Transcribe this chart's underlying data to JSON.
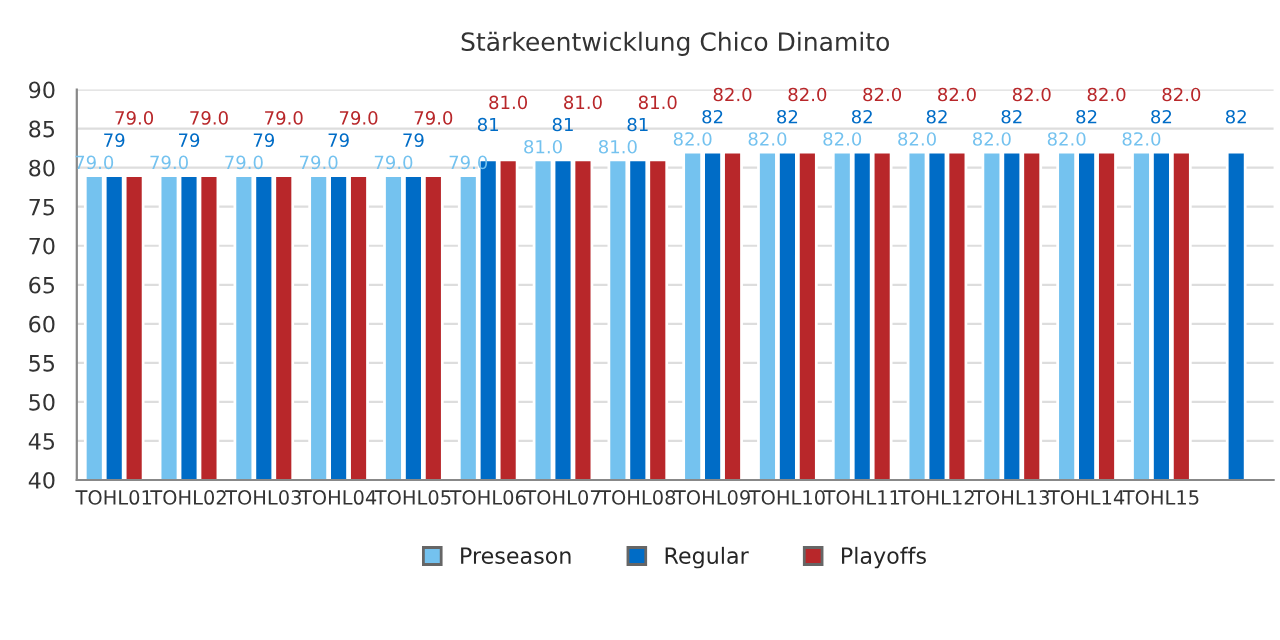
{
  "chart_data": {
    "type": "bar",
    "title": "Stärkeentwicklung Chico Dinamito",
    "categories": [
      "TOHL01",
      "TOHL02",
      "TOHL03",
      "TOHL04",
      "TOHL05",
      "TOHL06",
      "TOHL07",
      "TOHL08",
      "TOHL09",
      "TOHL10",
      "TOHL11",
      "TOHL12",
      "TOHL13",
      "TOHL14",
      "TOHL15",
      null
    ],
    "series": [
      {
        "name": "Preseason",
        "color": "#74c2ef",
        "values": [
          79,
          79,
          79,
          79,
          79,
          79,
          81,
          81,
          82,
          82,
          82,
          82,
          82,
          82,
          82,
          null
        ],
        "value_labels": [
          "79.0",
          "79.0",
          "79.0",
          "79.0",
          "79.0",
          "79.0",
          "81.0",
          "81.0",
          "82.0",
          "82.0",
          "82.0",
          "82.0",
          "82.0",
          "82.0",
          "82.0",
          null
        ]
      },
      {
        "name": "Regular",
        "color": "#006cc6",
        "values": [
          79,
          79,
          79,
          79,
          79,
          81,
          81,
          81,
          82,
          82,
          82,
          82,
          82,
          82,
          82,
          82
        ],
        "value_labels": [
          "79",
          "79",
          "79",
          "79",
          "79",
          "81",
          "81",
          "81",
          "82",
          "82",
          "82",
          "82",
          "82",
          "82",
          "82",
          "82"
        ]
      },
      {
        "name": "Playoffs",
        "color": "#b8272a",
        "values": [
          79,
          79,
          79,
          79,
          79,
          81,
          81,
          81,
          82,
          82,
          82,
          82,
          82,
          82,
          82,
          null
        ],
        "value_labels": [
          "79.0",
          "79.0",
          "79.0",
          "79.0",
          "79.0",
          "81.0",
          "81.0",
          "81.0",
          "82.0",
          "82.0",
          "82.0",
          "82.0",
          "82.0",
          "82.0",
          "82.0",
          null
        ]
      }
    ],
    "ylim": [
      40,
      90
    ],
    "yticks": [
      40,
      45,
      50,
      55,
      60,
      65,
      70,
      75,
      80,
      85,
      90
    ],
    "grid": "y",
    "legend": "bottom"
  }
}
